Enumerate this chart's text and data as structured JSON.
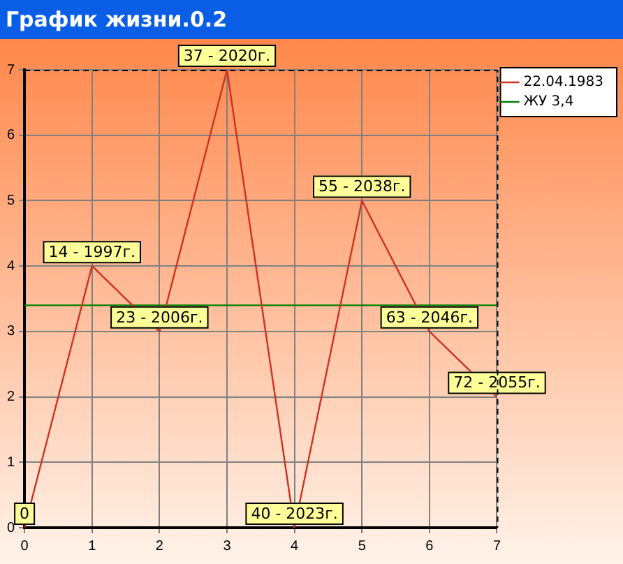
{
  "chart_data": {
    "type": "line",
    "title": "График жизни.0.2",
    "x": [
      0,
      1,
      2,
      3,
      4,
      5,
      6,
      7
    ],
    "series": [
      {
        "name": "22.04.1983",
        "color": "#cc3322",
        "values": [
          0,
          4,
          3,
          7,
          0,
          5,
          3,
          2
        ]
      }
    ],
    "annotations": [
      {
        "text": "0",
        "x": 0,
        "y": 0
      },
      {
        "text": "14 - 1997г.",
        "x": 1,
        "y": 4
      },
      {
        "text": "23 - 2006г.",
        "x": 2,
        "y": 3
      },
      {
        "text": "37 - 2020г.",
        "x": 3,
        "y": 7
      },
      {
        "text": "40 - 2023г.",
        "x": 4,
        "y": 0
      },
      {
        "text": "55 - 2038г.",
        "x": 5,
        "y": 5
      },
      {
        "text": "63 - 2046г.",
        "x": 6,
        "y": 3
      },
      {
        "text": "72 - 2055г.",
        "x": 7,
        "y": 2
      }
    ],
    "ref_lines": [
      {
        "axis": "y",
        "value": 3.4,
        "label": "ЖУ 3,4",
        "color": "#008000"
      }
    ],
    "xlim": [
      0,
      7
    ],
    "xticks": [
      0,
      1,
      2,
      3,
      4,
      5,
      6,
      7
    ],
    "ylim": [
      0,
      7
    ],
    "yticks": [
      0,
      1,
      2,
      3,
      4,
      5,
      6,
      7
    ],
    "grid": true,
    "legend": "right",
    "marker": "none",
    "line_style": "solid"
  }
}
